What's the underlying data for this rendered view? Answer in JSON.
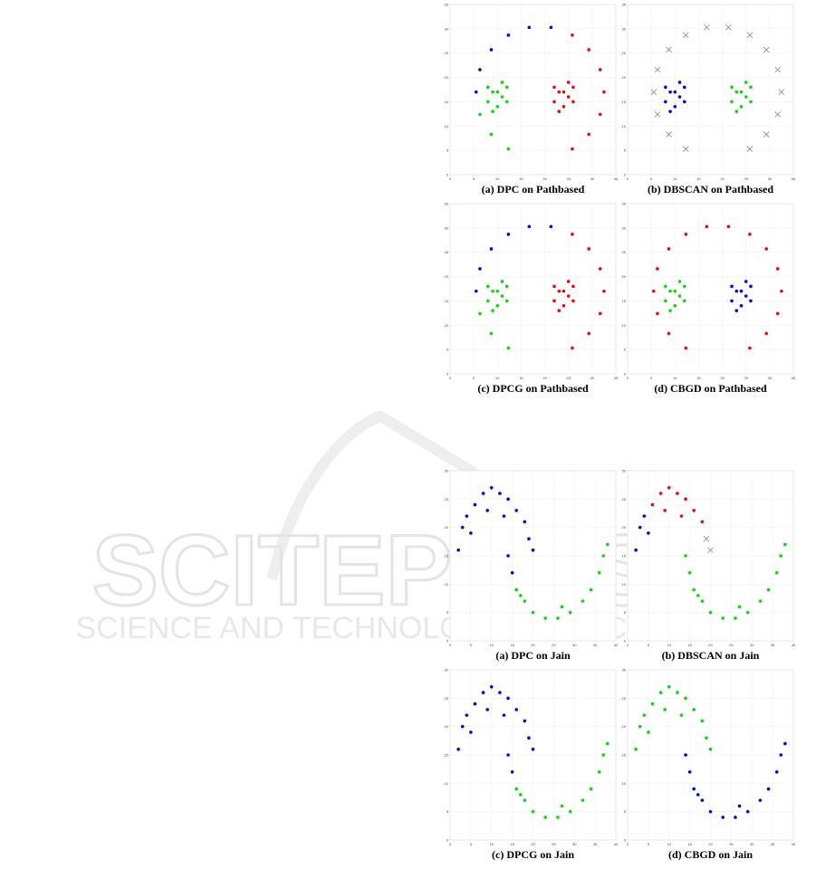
{
  "watermark": {
    "title": "SCITEPRESS",
    "subtitle": "SCIENCE AND TECHNOLOGY PUBLICATIONS"
  },
  "cluster_colors": [
    "#0000ff",
    "#00e000",
    "#ff0000"
  ],
  "noise_color": "#888888",
  "figures": [
    {
      "dataset": {
        "x": [
          12.3,
          8.7,
          6.3,
          5.5,
          6.3,
          8.7,
          12.3,
          16.7,
          21.3,
          25.8,
          29.3,
          31.7,
          32.5,
          31.7,
          29.3,
          25.8,
          8,
          9,
          10,
          11,
          12,
          9,
          11,
          12,
          8,
          10,
          22,
          23,
          24,
          25,
          26,
          23,
          25,
          26,
          22,
          24
        ],
        "y": [
          5.3,
          8.3,
          12.4,
          17,
          21.6,
          25.7,
          28.7,
          30.3,
          30.3,
          28.7,
          25.7,
          21.6,
          17,
          12.4,
          8.3,
          5.3,
          15,
          17,
          14,
          16,
          18,
          13,
          19,
          15,
          18,
          17,
          15,
          17,
          14,
          16,
          18,
          13,
          19,
          15,
          18,
          17
        ]
      },
      "xlim": [
        0,
        35
      ],
      "ylim": [
        0,
        35
      ],
      "xticks": [
        0,
        5,
        10,
        15,
        20,
        25,
        30,
        35
      ],
      "yticks": [
        0,
        5,
        10,
        15,
        20,
        25,
        30,
        35
      ],
      "panels": [
        {
          "caption": "(a) DPC on Pathbased",
          "labels": [
            1,
            1,
            1,
            0,
            0,
            0,
            0,
            0,
            0,
            2,
            2,
            2,
            2,
            2,
            2,
            2,
            1,
            1,
            1,
            1,
            1,
            1,
            1,
            1,
            1,
            1,
            2,
            2,
            2,
            2,
            2,
            2,
            2,
            2,
            2,
            2
          ]
        },
        {
          "caption": "(b) DBSCAN on Pathbased",
          "labels": [
            -1,
            -1,
            -1,
            -1,
            -1,
            -1,
            -1,
            -1,
            -1,
            -1,
            -1,
            -1,
            -1,
            -1,
            -1,
            -1,
            0,
            0,
            0,
            0,
            0,
            0,
            0,
            0,
            0,
            0,
            1,
            1,
            1,
            1,
            1,
            1,
            1,
            1,
            1,
            1
          ]
        },
        {
          "caption": "(c) DPCG on Pathbased",
          "labels": [
            1,
            1,
            1,
            0,
            0,
            0,
            0,
            0,
            0,
            2,
            2,
            2,
            2,
            2,
            2,
            2,
            1,
            1,
            1,
            1,
            1,
            1,
            1,
            1,
            1,
            1,
            2,
            2,
            2,
            2,
            2,
            2,
            2,
            2,
            2,
            2
          ]
        },
        {
          "caption": "(d) CBGD on Pathbased",
          "labels": [
            2,
            2,
            2,
            2,
            2,
            2,
            2,
            2,
            2,
            2,
            2,
            2,
            2,
            2,
            2,
            2,
            1,
            1,
            1,
            1,
            1,
            1,
            1,
            1,
            1,
            1,
            0,
            0,
            0,
            0,
            0,
            0,
            0,
            0,
            0,
            0
          ]
        }
      ]
    },
    {
      "dataset": {
        "x": [
          2,
          3,
          4,
          6,
          8,
          10,
          12,
          14,
          16,
          18,
          19,
          20,
          5,
          9,
          13,
          14,
          15,
          16,
          18,
          20,
          23,
          26,
          29,
          32,
          34,
          36,
          37,
          38,
          17,
          27
        ],
        "y": [
          16,
          20,
          22,
          24,
          26,
          27,
          26,
          25,
          23,
          21,
          18,
          16,
          19,
          23,
          22,
          15,
          12,
          9,
          7,
          5,
          4,
          4,
          5,
          7,
          9,
          12,
          15,
          17,
          8,
          6
        ]
      },
      "xlim": [
        0,
        40
      ],
      "ylim": [
        0,
        30
      ],
      "xticks": [
        0,
        5,
        10,
        15,
        20,
        25,
        30,
        35,
        40
      ],
      "yticks": [
        0,
        5,
        10,
        15,
        20,
        25,
        30
      ],
      "panels": [
        {
          "caption": "(a) DPC on Jain",
          "labels": [
            0,
            0,
            0,
            0,
            0,
            0,
            0,
            0,
            0,
            0,
            0,
            0,
            0,
            0,
            0,
            0,
            0,
            1,
            1,
            1,
            1,
            1,
            1,
            1,
            1,
            1,
            1,
            1,
            1,
            1
          ]
        },
        {
          "caption": "(b) DBSCAN on Jain",
          "labels": [
            0,
            0,
            0,
            2,
            2,
            2,
            2,
            2,
            2,
            2,
            -1,
            -1,
            0,
            2,
            2,
            1,
            1,
            1,
            1,
            1,
            1,
            1,
            1,
            1,
            1,
            1,
            1,
            1,
            1,
            1
          ]
        },
        {
          "caption": "(c) DPCG on Jain",
          "labels": [
            0,
            0,
            0,
            0,
            0,
            0,
            0,
            0,
            0,
            0,
            0,
            0,
            0,
            0,
            0,
            0,
            0,
            1,
            1,
            1,
            1,
            1,
            1,
            1,
            1,
            1,
            1,
            1,
            1,
            1
          ]
        },
        {
          "caption": "(d) CBGD on Jain",
          "labels": [
            1,
            1,
            1,
            1,
            1,
            1,
            1,
            1,
            1,
            1,
            1,
            1,
            1,
            1,
            1,
            0,
            0,
            0,
            0,
            0,
            0,
            0,
            0,
            0,
            0,
            0,
            0,
            0,
            0,
            0
          ]
        }
      ]
    }
  ]
}
